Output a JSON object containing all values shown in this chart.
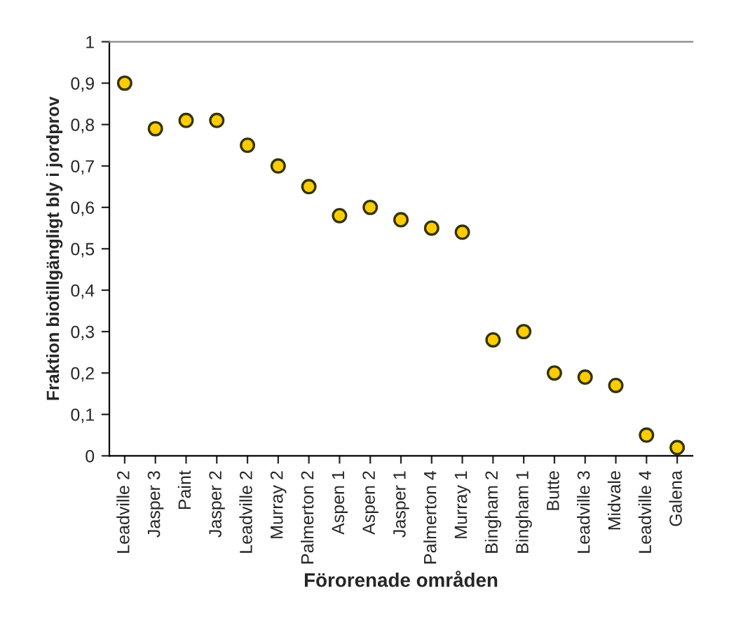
{
  "chart_data": {
    "type": "scatter",
    "xlabel": "Förorenade områden",
    "ylabel": "Fraktion biotillgängligt bly i jordprov",
    "categories": [
      "Leadville 2",
      "Jasper 3",
      "Paint",
      "Jasper 2",
      "Leadville 2",
      "Murray 2",
      "Palmerton 2",
      "Aspen 1",
      "Aspen 2",
      "Jasper 1",
      "Palmerton 4",
      "Murray 1",
      "Bingham 2",
      "Bingham 1",
      "Butte",
      "Leadville 3",
      "Midvale",
      "Leadville 4",
      "Galena"
    ],
    "series": [
      {
        "color": "#ffcc00",
        "values": [
          0.9,
          0.79,
          0.81,
          0.81,
          0.75,
          0.7,
          0.65,
          0.58,
          0.6,
          0.57,
          0.55,
          0.54,
          0.28,
          0.3,
          0.2,
          0.19,
          0.17,
          0.05,
          0.02
        ]
      }
    ],
    "ylim": [
      0,
      1
    ],
    "yticks": [
      0,
      {
        "value": 0.1,
        "label": "0,1"
      },
      {
        "value": 0.2,
        "label": "0,2"
      },
      {
        "value": 0.3,
        "label": "0,3"
      },
      {
        "value": 0.4,
        "label": "0,4"
      },
      {
        "value": 0.5,
        "label": "0,5"
      },
      {
        "value": 0.6,
        "label": "0,6"
      },
      {
        "value": 0.7,
        "label": "0,7"
      },
      {
        "value": 0.8,
        "label": "0,8"
      },
      {
        "value": 0.9,
        "label": "0,9"
      },
      1
    ],
    "marker": "circle",
    "grid": false
  }
}
